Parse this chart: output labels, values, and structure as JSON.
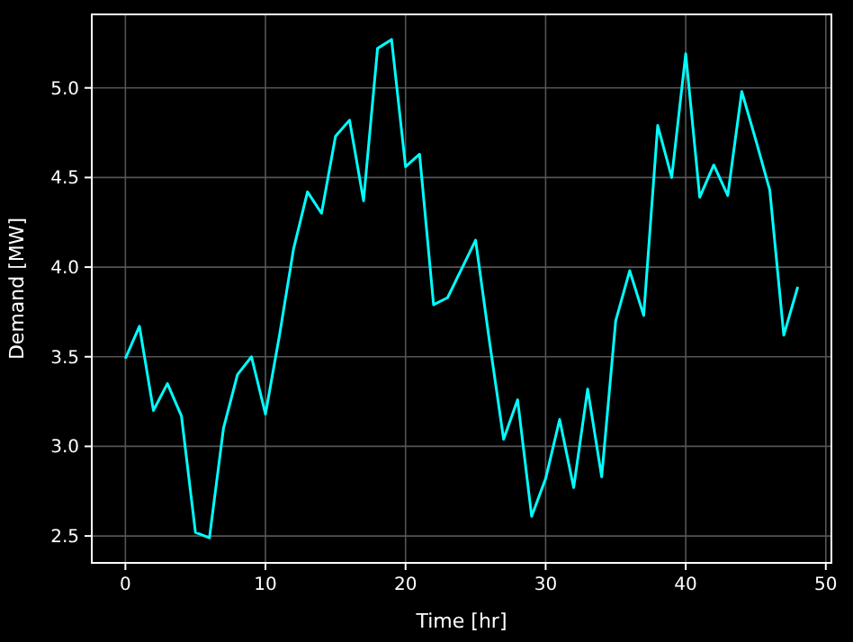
{
  "chart_data": {
    "type": "line",
    "xlabel": "Time [hr]",
    "ylabel": "Demand [MW]",
    "x": [
      0,
      1,
      2,
      3,
      4,
      5,
      6,
      7,
      8,
      9,
      10,
      11,
      12,
      13,
      14,
      15,
      16,
      17,
      18,
      19,
      20,
      21,
      22,
      23,
      24,
      25,
      26,
      27,
      28,
      29,
      30,
      31,
      32,
      33,
      34,
      35,
      36,
      37,
      38,
      39,
      40,
      41,
      42,
      43,
      44,
      45,
      46,
      47,
      48
    ],
    "series": [
      {
        "color": "#00ffff",
        "values": [
          3.49,
          3.67,
          3.2,
          3.35,
          3.17,
          2.52,
          2.49,
          3.1,
          3.4,
          3.5,
          3.18,
          3.62,
          4.1,
          4.42,
          4.3,
          4.73,
          4.82,
          4.37,
          5.22,
          5.27,
          4.56,
          4.63,
          3.79,
          3.83,
          3.99,
          4.15,
          3.58,
          3.04,
          3.26,
          2.61,
          2.82,
          3.15,
          2.77,
          3.32,
          2.83,
          3.7,
          3.98,
          3.73,
          4.79,
          4.5,
          5.19,
          4.39,
          4.57,
          4.4,
          4.98,
          4.71,
          4.43,
          3.62,
          3.89
        ]
      }
    ],
    "xlim": [
      -2.4,
      50.4
    ],
    "xticks": [
      0,
      10,
      20,
      30,
      40,
      50
    ],
    "ylim": [
      2.35,
      5.41
    ],
    "yticks": [
      2.5,
      {
        "value": 3,
        "label": "3.0"
      },
      3.5,
      {
        "value": 4,
        "label": "4.0"
      },
      4.5,
      {
        "value": 5,
        "label": "5.0"
      }
    ],
    "grid": true,
    "line_style": "solid",
    "marker": "none"
  }
}
